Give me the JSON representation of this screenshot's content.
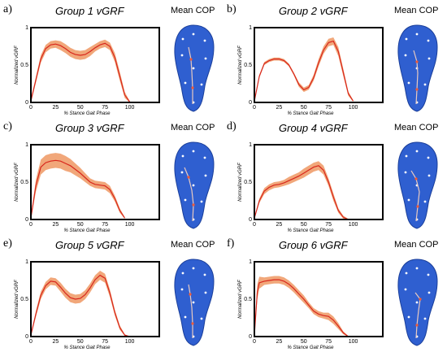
{
  "cop_title": "Mean COP",
  "panels": [
    {
      "letter": "a)",
      "title": "Group 1 vGRF"
    },
    {
      "letter": "b)",
      "title": "Group 2 vGRF"
    },
    {
      "letter": "c)",
      "title": "Group 3 vGRF"
    },
    {
      "letter": "d)",
      "title": "Group 4 vGRF"
    },
    {
      "letter": "e)",
      "title": "Group 5 vGRF"
    },
    {
      "letter": "f)",
      "title": "Group 6 vGRF"
    }
  ],
  "colors": {
    "line": "#d8261c",
    "band": "#f1a77a",
    "foot": "#2f5fd0",
    "foot_edge": "#1b3f9a"
  },
  "chart_data": [
    {
      "type": "line",
      "title": "Group 1 vGRF",
      "xlabel": "% Stance Gait Phase",
      "ylabel": "Normalized vGRF",
      "xlim": [
        0,
        130
      ],
      "ylim": [
        0,
        1
      ],
      "xticks": [
        "0",
        "25",
        "50",
        "75",
        "100"
      ],
      "yticks": [
        "0",
        "0.5",
        "1"
      ],
      "xtick_values": [
        0,
        25,
        50,
        75,
        100
      ],
      "series": [
        {
          "x": [
            0,
            5,
            10,
            15,
            20,
            25,
            30,
            35,
            40,
            45,
            50,
            55,
            60,
            65,
            70,
            75,
            80,
            85,
            90,
            95,
            100
          ],
          "y": [
            0.02,
            0.3,
            0.58,
            0.72,
            0.77,
            0.78,
            0.76,
            0.72,
            0.67,
            0.64,
            0.63,
            0.64,
            0.68,
            0.73,
            0.77,
            0.79,
            0.75,
            0.6,
            0.35,
            0.1,
            0.01
          ],
          "band": [
            0.02,
            0.04,
            0.05,
            0.05,
            0.05,
            0.05,
            0.06,
            0.06,
            0.06,
            0.06,
            0.06,
            0.06,
            0.06,
            0.05,
            0.05,
            0.05,
            0.05,
            0.06,
            0.06,
            0.04,
            0.01
          ]
        }
      ]
    },
    {
      "type": "line",
      "title": "Group 2 vGRF",
      "xlabel": "% Stance Gait Phase",
      "ylabel": "Normalized vGRF",
      "xlim": [
        0,
        130
      ],
      "ylim": [
        0,
        1
      ],
      "xticks": [
        "0",
        "25",
        "50",
        "75",
        "100"
      ],
      "yticks": [
        "0",
        "0.5",
        "1"
      ],
      "xtick_values": [
        0,
        25,
        50,
        75,
        100
      ],
      "series": [
        {
          "x": [
            0,
            5,
            10,
            15,
            20,
            25,
            30,
            35,
            40,
            45,
            50,
            55,
            60,
            65,
            70,
            75,
            80,
            85,
            90,
            95,
            100
          ],
          "y": [
            0.02,
            0.35,
            0.52,
            0.56,
            0.58,
            0.58,
            0.56,
            0.5,
            0.38,
            0.24,
            0.17,
            0.2,
            0.33,
            0.53,
            0.7,
            0.8,
            0.82,
            0.68,
            0.4,
            0.12,
            0.02
          ],
          "band": [
            0.01,
            0.02,
            0.02,
            0.02,
            0.02,
            0.02,
            0.02,
            0.02,
            0.02,
            0.03,
            0.03,
            0.03,
            0.04,
            0.05,
            0.05,
            0.05,
            0.05,
            0.06,
            0.05,
            0.03,
            0.01
          ]
        }
      ]
    },
    {
      "type": "line",
      "title": "Group 3 vGRF",
      "xlabel": "% Stance Gait Phase",
      "ylabel": "Normalized vGRF",
      "xlim": [
        0,
        130
      ],
      "ylim": [
        0,
        1
      ],
      "xticks": [
        "0",
        "25",
        "50",
        "75",
        "100"
      ],
      "yticks": [
        "0",
        "0.5",
        "1"
      ],
      "xtick_values": [
        0,
        25,
        50,
        75,
        100
      ],
      "series": [
        {
          "x": [
            0,
            5,
            10,
            15,
            20,
            25,
            30,
            35,
            40,
            45,
            50,
            55,
            60,
            65,
            70,
            75,
            80,
            85,
            90,
            95
          ],
          "y": [
            0.02,
            0.45,
            0.7,
            0.76,
            0.78,
            0.79,
            0.78,
            0.75,
            0.72,
            0.67,
            0.62,
            0.56,
            0.5,
            0.47,
            0.46,
            0.45,
            0.4,
            0.28,
            0.12,
            0.02
          ],
          "band": [
            0.02,
            0.08,
            0.1,
            0.1,
            0.1,
            0.1,
            0.1,
            0.1,
            0.09,
            0.08,
            0.07,
            0.06,
            0.05,
            0.05,
            0.05,
            0.05,
            0.05,
            0.04,
            0.03,
            0.01
          ]
        }
      ]
    },
    {
      "type": "line",
      "title": "Group 4 vGRF",
      "xlabel": "% Stance Gait Phase",
      "ylabel": "Normalized vGRF",
      "xlim": [
        0,
        130
      ],
      "ylim": [
        0,
        1
      ],
      "xticks": [
        "0",
        "25",
        "50",
        "75",
        "100"
      ],
      "yticks": [
        "0",
        "0.5",
        "1"
      ],
      "xtick_values": [
        0,
        25,
        50,
        75,
        100
      ],
      "series": [
        {
          "x": [
            0,
            5,
            10,
            15,
            20,
            25,
            30,
            35,
            40,
            45,
            50,
            55,
            60,
            65,
            70,
            75,
            80,
            85,
            90,
            95
          ],
          "y": [
            0.02,
            0.25,
            0.38,
            0.43,
            0.46,
            0.47,
            0.49,
            0.52,
            0.55,
            0.58,
            0.62,
            0.66,
            0.7,
            0.72,
            0.66,
            0.5,
            0.3,
            0.12,
            0.03,
            0.0
          ],
          "band": [
            0.01,
            0.03,
            0.04,
            0.04,
            0.04,
            0.04,
            0.04,
            0.05,
            0.05,
            0.05,
            0.06,
            0.06,
            0.06,
            0.06,
            0.06,
            0.05,
            0.05,
            0.03,
            0.02,
            0.01
          ]
        }
      ]
    },
    {
      "type": "line",
      "title": "Group 5 vGRF",
      "xlabel": "% Stance Gait Phase",
      "ylabel": "Normalized vGRF",
      "xlim": [
        0,
        130
      ],
      "ylim": [
        0,
        1
      ],
      "xticks": [
        "0",
        "25",
        "50",
        "75",
        "100"
      ],
      "yticks": [
        "0",
        "0.5",
        "1"
      ],
      "xtick_values": [
        0,
        25,
        50,
        75,
        100
      ],
      "series": [
        {
          "x": [
            0,
            5,
            10,
            15,
            20,
            25,
            30,
            35,
            40,
            45,
            50,
            55,
            60,
            65,
            70,
            75,
            80,
            85,
            90,
            95,
            100
          ],
          "y": [
            0.02,
            0.3,
            0.55,
            0.68,
            0.74,
            0.73,
            0.66,
            0.58,
            0.52,
            0.5,
            0.51,
            0.56,
            0.65,
            0.76,
            0.82,
            0.78,
            0.58,
            0.32,
            0.12,
            0.02,
            0.0
          ],
          "band": [
            0.01,
            0.04,
            0.05,
            0.05,
            0.05,
            0.05,
            0.06,
            0.06,
            0.06,
            0.06,
            0.06,
            0.06,
            0.06,
            0.06,
            0.06,
            0.06,
            0.05,
            0.04,
            0.03,
            0.01,
            0.0
          ]
        }
      ]
    },
    {
      "type": "line",
      "title": "Group 6 vGRF",
      "xlabel": "% Stance Gait Phase",
      "ylabel": "Normalized vGRF",
      "xlim": [
        0,
        130
      ],
      "ylim": [
        0,
        1
      ],
      "xticks": [
        "0",
        "25",
        "50",
        "75",
        "100"
      ],
      "yticks": [
        "0",
        "0.5",
        "1"
      ],
      "xtick_values": [
        0,
        25,
        50,
        75,
        100
      ],
      "series": [
        {
          "x": [
            0,
            3,
            5,
            10,
            15,
            20,
            25,
            30,
            35,
            40,
            45,
            50,
            55,
            60,
            65,
            70,
            75,
            80,
            85,
            90,
            95
          ],
          "y": [
            0.02,
            0.6,
            0.72,
            0.74,
            0.75,
            0.76,
            0.76,
            0.74,
            0.7,
            0.64,
            0.57,
            0.5,
            0.42,
            0.34,
            0.3,
            0.28,
            0.27,
            0.22,
            0.14,
            0.05,
            0.0
          ],
          "band": [
            0.02,
            0.1,
            0.08,
            0.05,
            0.05,
            0.05,
            0.05,
            0.05,
            0.05,
            0.05,
            0.05,
            0.05,
            0.04,
            0.04,
            0.04,
            0.04,
            0.05,
            0.05,
            0.04,
            0.02,
            0.01
          ]
        }
      ]
    }
  ]
}
